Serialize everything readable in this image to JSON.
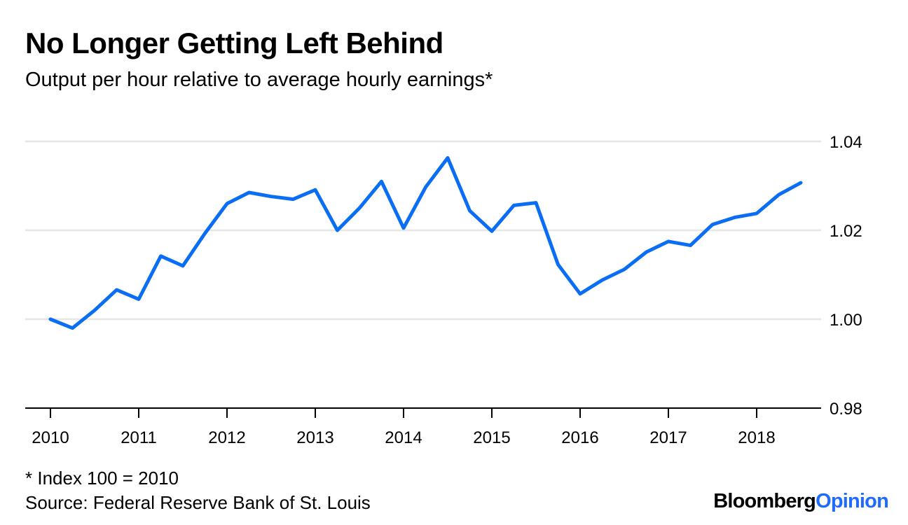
{
  "colors": {
    "line": "#0a6ef5",
    "grid": "#e6e6e6",
    "axis": "#000000",
    "brand_accent": "#1f6bff"
  },
  "chart_data": {
    "type": "line",
    "title": "No Longer Getting Left Behind",
    "subtitle": "Output per hour relative to average hourly earnings*",
    "xlabel": "",
    "ylabel": "",
    "x_ticks": [
      "2010",
      "2011",
      "2012",
      "2013",
      "2014",
      "2015",
      "2016",
      "2017",
      "2018"
    ],
    "y_ticks": [
      "1.04",
      "1.02",
      "1.00",
      "0.98"
    ],
    "xlim": [
      2010.0,
      2018.5
    ],
    "ylim": [
      0.98,
      1.04
    ],
    "y_axis_side": "right",
    "grid": true,
    "legend": "none",
    "series": [
      {
        "x": [
          2010.0,
          2010.25,
          2010.5,
          2010.75,
          2011.0,
          2011.25,
          2011.5,
          2011.75,
          2012.0,
          2012.25,
          2012.5,
          2012.75,
          2013.0,
          2013.25,
          2013.5,
          2013.75,
          2014.0,
          2014.25,
          2014.5,
          2014.75,
          2015.0,
          2015.25,
          2015.5,
          2015.75,
          2016.0,
          2016.25,
          2016.5,
          2016.75,
          2017.0,
          2017.25,
          2017.5,
          2017.75,
          2018.0,
          2018.25,
          2018.5
        ],
        "values": [
          1.0,
          0.998,
          1.002,
          1.0066,
          1.0045,
          1.0142,
          1.012,
          1.0193,
          1.026,
          1.0285,
          1.0276,
          1.027,
          1.0291,
          1.02,
          1.025,
          1.031,
          1.0205,
          1.0297,
          1.0363,
          1.0244,
          1.0198,
          1.0256,
          1.0262,
          1.0123,
          1.0057,
          1.0088,
          1.0112,
          1.0151,
          1.0175,
          1.0166,
          1.0213,
          1.0229,
          1.0238,
          1.028,
          1.0307
        ]
      }
    ]
  },
  "footnote": "* Index 100 = 2010",
  "source": "Source: Federal Reserve Bank of St. Louis",
  "brand": {
    "part1": "Bloomberg",
    "part2": "Opinion"
  }
}
